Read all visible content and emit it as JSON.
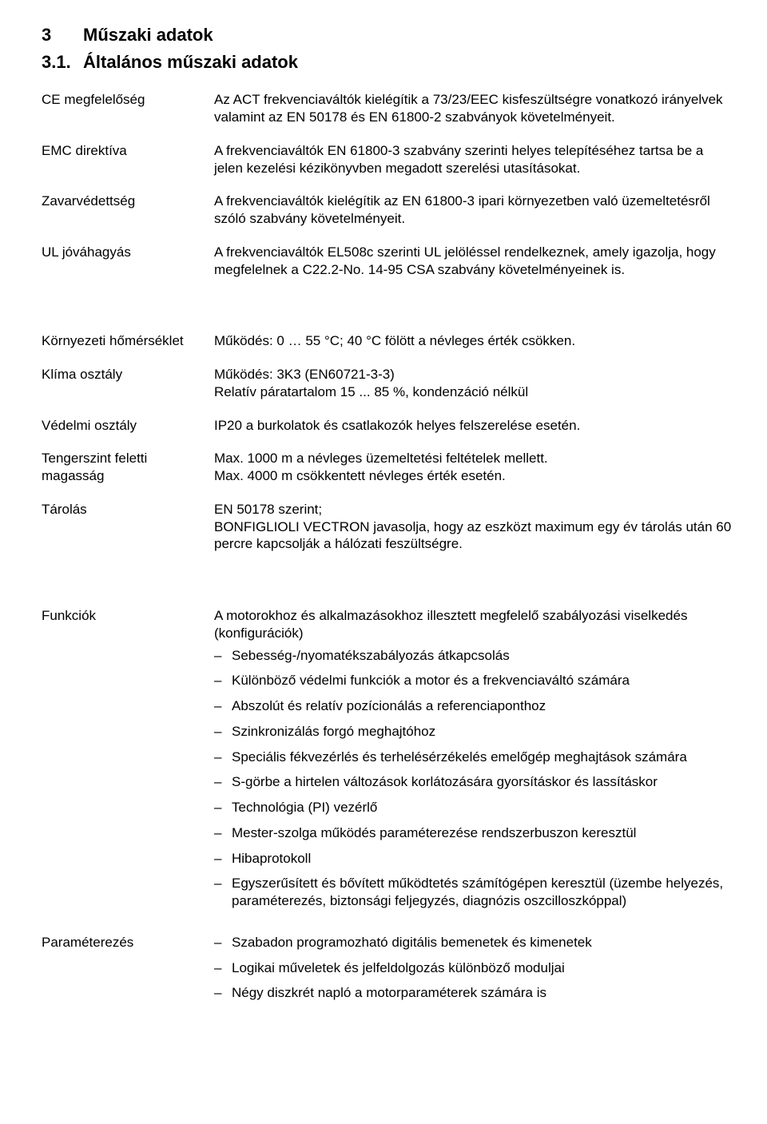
{
  "heading": {
    "section_number": "3",
    "section_title": "Műszaki adatok",
    "subsection_number": "3.1.",
    "subsection_title": "Általános műszaki adatok"
  },
  "rows": {
    "ce": {
      "term": "CE megfelelőség",
      "text": "Az ACT frekvenciaváltók kielégítik a 73/23/EEC kisfeszültségre vonatkozó irányelvek valamint az EN 50178 és EN 61800-2 szabványok követelményeit."
    },
    "emc": {
      "term": "EMC direktíva",
      "text": "A frekvenciaváltók EN 61800-3 szabvány szerinti helyes telepítéséhez tartsa be a jelen kezelési kézikönyvben megadott szerelési utasításokat."
    },
    "zavar": {
      "term": "Zavarvédettség",
      "text": "A frekvenciaváltók kielégítik az EN 61800-3 ipari környezetben való üzemeltetésről szóló szabvány követelményeit."
    },
    "ul": {
      "term": "UL jóváhagyás",
      "text": "A frekvenciaváltók EL508c szerinti UL jelöléssel rendelkeznek, amely igazolja, hogy megfelelnek a C22.2-No. 14-95 CSA szabvány követelményeinek is."
    },
    "korny": {
      "term": "Környezeti hőmérséklet",
      "text": "Működés: 0 … 55 °C; 40 °C fölött a névleges érték csökken."
    },
    "klima": {
      "term": "Klíma osztály",
      "line1": "Működés: 3K3 (EN60721-3-3)",
      "line2": "Relatív páratartalom 15 ... 85 %, kondenzáció nélkül"
    },
    "vedelmi": {
      "term": "Védelmi osztály",
      "text": "IP20 a burkolatok és csatlakozók helyes felszerelése esetén."
    },
    "tenger": {
      "term": "Tengerszint feletti magasság",
      "line1": "Max. 1000 m a névleges üzemeltetési feltételek mellett.",
      "line2": "Max. 4000 m csökkentett névleges érték esetén."
    },
    "tarolas": {
      "term": "Tárolás",
      "line1": "EN 50178 szerint;",
      "line2": "BONFIGLIOLI VECTRON javasolja, hogy az eszközt maximum egy év tárolás után 60 percre kapcsolják a hálózati feszültségre."
    },
    "funkciok": {
      "term": "Funkciók",
      "intro": "A motorokhoz és alkalmazásokhoz illesztett megfelelő szabályozási viselkedés (konfigurációk)",
      "items": [
        "Sebesség-/nyomatékszabályozás átkapcsolás",
        "Különböző védelmi funkciók a motor és a frekvenciaváltó számára",
        "Abszolút és relatív pozícionálás a referenciaponthoz",
        "Szinkronizálás forgó meghajtóhoz",
        "Speciális fékvezérlés és terhelésérzékelés emelőgép meghajtások számára",
        "S-görbe a hirtelen változások korlátozására gyorsításkor és lassításkor",
        "Technológia (PI) vezérlő",
        "Mester-szolga működés paraméterezése rendszerbuszon keresztül",
        "Hibaprotokoll",
        "Egyszerűsített és bővített működtetés számítógépen keresztül  (üzembe helyezés, paraméterezés, biztonsági feljegyzés, diagnózis oszcilloszkóppal)"
      ]
    },
    "param": {
      "term": "Paraméterezés",
      "items": [
        "Szabadon programozható digitális bemenetek és kimenetek",
        "Logikai műveletek és jelfeldolgozás különböző moduljai",
        "Négy diszkrét napló a motorparaméterek számára is"
      ]
    }
  }
}
